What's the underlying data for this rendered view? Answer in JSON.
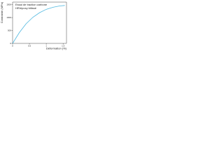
{
  "chart_data": {
    "type": "line",
    "title": [
      "Essai de traction carbone",
      "HR/époxy bitissé"
    ],
    "xlabel": "Déformation (%)",
    "ylabel": "Contrainte (MPa)",
    "x": [
      0,
      0.2,
      0.4,
      0.6,
      0.8,
      1.0,
      1.2,
      1.4,
      1.55
    ],
    "series": [
      {
        "name": "HR/époxy",
        "color": "#4fb8e0",
        "values": [
          0,
          420,
          760,
          1010,
          1190,
          1320,
          1400,
          1450,
          1470
        ]
      }
    ],
    "xlim": [
      0,
      1.6
    ],
    "ylim": [
      0,
      1600
    ],
    "xticks": [
      0,
      0.5,
      1,
      1.5
    ],
    "yticks": [
      0,
      500,
      1000,
      1500
    ],
    "grid": false
  }
}
